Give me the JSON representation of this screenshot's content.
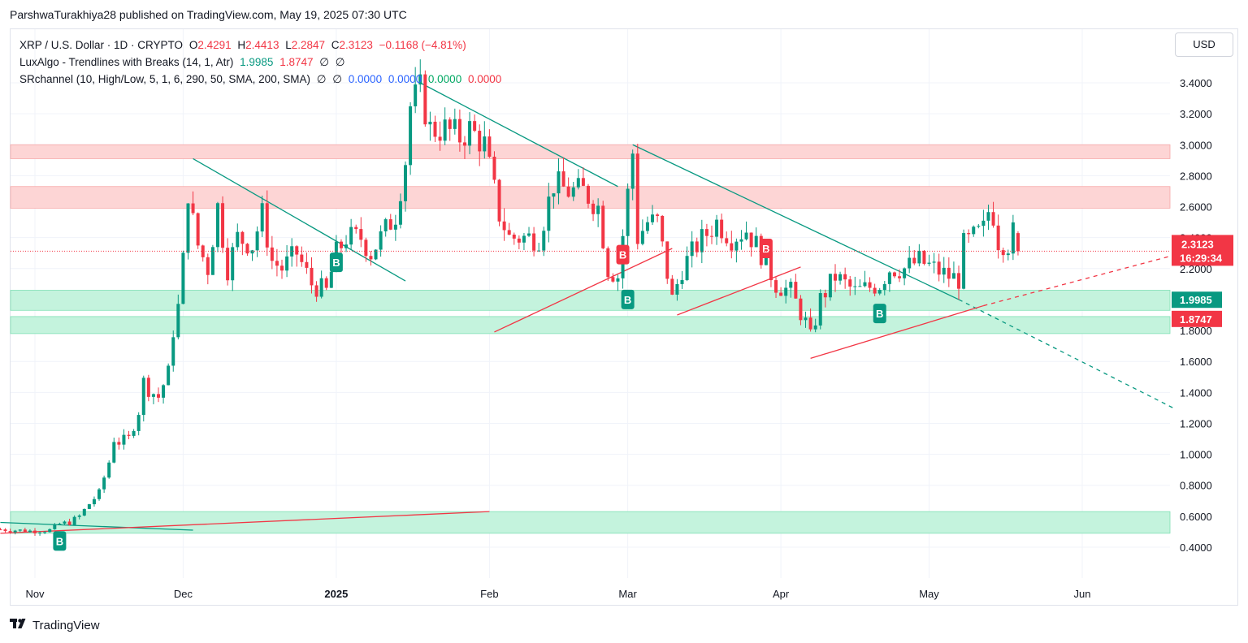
{
  "header": {
    "published": "ParshwaTurakhiya28 published on TradingView.com, May 19, 2025 07:30 UTC"
  },
  "legend": {
    "symbol": "XRP / U.S. Dollar · 1D · CRYPTO",
    "o_label": "O",
    "o": "2.4291",
    "h_label": "H",
    "h": "2.4413",
    "l_label": "L",
    "l": "2.2847",
    "c_label": "C",
    "c": "2.3123",
    "change": "−0.1168 (−4.81%)",
    "ind1_name": "LuxAlgo - Trendlines with Breaks (14, 1, Atr)",
    "ind1_v1": "1.9985",
    "ind1_v2": "1.8747",
    "ind1_na1": "∅",
    "ind1_na2": "∅",
    "ind2_name": "SRchannel (10, High/Low, 5, 1, 6, 290, 50, SMA, 200, SMA)",
    "ind2_na1": "∅",
    "ind2_na2": "∅",
    "ind2_v1": "0.0000",
    "ind2_v2": "0.0000",
    "ind2_v3": "0.0000",
    "ind2_v4": "0.0000"
  },
  "currency_button": "USD",
  "footer": {
    "brand": "TradingView",
    "logo_icon": "tradingview-logo-icon"
  },
  "colors": {
    "up": "#089981",
    "down": "#f23645",
    "text": "#131722",
    "blue": "#2962ff",
    "green": "#00a862",
    "red": "#f23645",
    "resistance_zone": "#fdd5d5",
    "support_zone": "#c4f3dd"
  },
  "chart_data": {
    "type": "candlestick",
    "symbol": "XRP / U.S. Dollar",
    "interval": "1D",
    "ylim": [
      0.3,
      3.65
    ],
    "y_ticks": [
      "3.4000",
      "3.2000",
      "3.0000",
      "2.8000",
      "2.6000",
      "2.4000",
      "2.2000",
      "2.0000",
      "1.8000",
      "1.6000",
      "1.4000",
      "1.2000",
      "1.0000",
      "0.8000",
      "0.6000",
      "0.4000"
    ],
    "x_start": "2024-10-25",
    "x_end": "2025-06-20",
    "x_ticks": [
      {
        "date": "2024-11-01",
        "label": "Nov",
        "bold": false
      },
      {
        "date": "2024-12-01",
        "label": "Dec",
        "bold": false
      },
      {
        "date": "2025-01-01",
        "label": "2025",
        "bold": true
      },
      {
        "date": "2025-02-01",
        "label": "Feb",
        "bold": false
      },
      {
        "date": "2025-03-01",
        "label": "Mar",
        "bold": false
      },
      {
        "date": "2025-04-01",
        "label": "Apr",
        "bold": false
      },
      {
        "date": "2025-05-01",
        "label": "May",
        "bold": false
      },
      {
        "date": "2025-06-01",
        "label": "Jun",
        "bold": false
      }
    ],
    "grid": true,
    "closes": [
      {
        "date": "2024-10-25",
        "close": 0.515
      },
      {
        "date": "2024-10-28",
        "close": 0.51
      },
      {
        "date": "2024-10-31",
        "close": 0.505
      },
      {
        "date": "2024-11-04",
        "close": 0.51
      },
      {
        "date": "2024-11-06",
        "close": 0.55
      },
      {
        "date": "2024-11-08",
        "close": 0.56
      },
      {
        "date": "2024-11-10",
        "close": 0.6
      },
      {
        "date": "2024-11-12",
        "close": 0.68
      },
      {
        "date": "2024-11-14",
        "close": 0.75
      },
      {
        "date": "2024-11-16",
        "close": 0.95
      },
      {
        "date": "2024-11-17",
        "close": 1.1
      },
      {
        "date": "2024-11-18",
        "close": 1.08
      },
      {
        "date": "2024-11-20",
        "close": 1.1
      },
      {
        "date": "2024-11-22",
        "close": 1.28
      },
      {
        "date": "2024-11-23",
        "close": 1.47
      },
      {
        "date": "2024-11-24",
        "close": 1.42
      },
      {
        "date": "2024-11-26",
        "close": 1.37
      },
      {
        "date": "2024-11-28",
        "close": 1.53
      },
      {
        "date": "2024-11-29",
        "close": 1.8
      },
      {
        "date": "2024-11-30",
        "close": 1.95
      },
      {
        "date": "2024-12-01",
        "close": 2.25
      },
      {
        "date": "2024-12-02",
        "close": 2.7
      },
      {
        "date": "2024-12-03",
        "close": 2.5
      },
      {
        "date": "2024-12-04",
        "close": 2.35
      },
      {
        "date": "2024-12-06",
        "close": 2.2
      },
      {
        "date": "2024-12-08",
        "close": 2.6
      },
      {
        "date": "2024-12-10",
        "close": 2.2
      },
      {
        "date": "2024-12-12",
        "close": 2.4
      },
      {
        "date": "2024-12-15",
        "close": 2.35
      },
      {
        "date": "2024-12-17",
        "close": 2.55
      },
      {
        "date": "2024-12-19",
        "close": 2.25
      },
      {
        "date": "2024-12-21",
        "close": 2.2
      },
      {
        "date": "2024-12-24",
        "close": 2.3
      },
      {
        "date": "2024-12-27",
        "close": 2.1
      },
      {
        "date": "2024-12-30",
        "close": 2.05
      },
      {
        "date": "2025-01-01",
        "close": 2.3
      },
      {
        "date": "2025-01-03",
        "close": 2.4
      },
      {
        "date": "2025-01-06",
        "close": 2.4
      },
      {
        "date": "2025-01-08",
        "close": 2.3
      },
      {
        "date": "2025-01-11",
        "close": 2.45
      },
      {
        "date": "2025-01-13",
        "close": 2.55
      },
      {
        "date": "2025-01-15",
        "close": 2.9
      },
      {
        "date": "2025-01-16",
        "close": 3.25
      },
      {
        "date": "2025-01-18",
        "close": 3.35
      },
      {
        "date": "2025-01-20",
        "close": 3.1
      },
      {
        "date": "2025-01-23",
        "close": 3.1
      },
      {
        "date": "2025-01-26",
        "close": 3.05
      },
      {
        "date": "2025-01-28",
        "close": 3.1
      },
      {
        "date": "2025-01-31",
        "close": 3.0
      },
      {
        "date": "2025-02-02",
        "close": 2.7
      },
      {
        "date": "2025-02-03",
        "close": 2.55
      },
      {
        "date": "2025-02-05",
        "close": 2.4
      },
      {
        "date": "2025-02-08",
        "close": 2.4
      },
      {
        "date": "2025-02-11",
        "close": 2.4
      },
      {
        "date": "2025-02-14",
        "close": 2.75
      },
      {
        "date": "2025-02-17",
        "close": 2.7
      },
      {
        "date": "2025-02-20",
        "close": 2.7
      },
      {
        "date": "2025-02-23",
        "close": 2.6
      },
      {
        "date": "2025-02-25",
        "close": 2.2
      },
      {
        "date": "2025-02-27",
        "close": 2.15
      },
      {
        "date": "2025-03-02",
        "close": 2.95
      },
      {
        "date": "2025-03-03",
        "close": 2.4
      },
      {
        "date": "2025-03-05",
        "close": 2.5
      },
      {
        "date": "2025-03-07",
        "close": 2.5
      },
      {
        "date": "2025-03-10",
        "close": 2.0
      },
      {
        "date": "2025-03-12",
        "close": 2.2
      },
      {
        "date": "2025-03-15",
        "close": 2.35
      },
      {
        "date": "2025-03-19",
        "close": 2.5
      },
      {
        "date": "2025-03-22",
        "close": 2.4
      },
      {
        "date": "2025-03-25",
        "close": 2.45
      },
      {
        "date": "2025-03-28",
        "close": 2.3
      },
      {
        "date": "2025-03-31",
        "close": 2.1
      },
      {
        "date": "2025-04-03",
        "close": 2.05
      },
      {
        "date": "2025-04-06",
        "close": 1.85
      },
      {
        "date": "2025-04-07",
        "close": 1.75
      },
      {
        "date": "2025-04-09",
        "close": 2.0
      },
      {
        "date": "2025-04-12",
        "close": 2.15
      },
      {
        "date": "2025-04-16",
        "close": 2.05
      },
      {
        "date": "2025-04-21",
        "close": 2.1
      },
      {
        "date": "2025-04-23",
        "close": 2.2
      },
      {
        "date": "2025-04-26",
        "close": 2.2
      },
      {
        "date": "2025-04-29",
        "close": 2.25
      },
      {
        "date": "2025-05-02",
        "close": 2.2
      },
      {
        "date": "2025-05-05",
        "close": 2.15
      },
      {
        "date": "2025-05-07",
        "close": 2.13
      },
      {
        "date": "2025-05-08",
        "close": 2.35
      },
      {
        "date": "2025-05-10",
        "close": 2.4
      },
      {
        "date": "2025-05-12",
        "close": 2.45
      },
      {
        "date": "2025-05-13",
        "close": 2.57
      },
      {
        "date": "2025-05-14",
        "close": 2.55
      },
      {
        "date": "2025-05-15",
        "close": 2.38
      },
      {
        "date": "2025-05-17",
        "close": 2.36
      },
      {
        "date": "2025-05-18",
        "close": 2.43
      },
      {
        "date": "2025-05-19",
        "close": 2.3123
      }
    ],
    "last_candle": {
      "date": "2025-05-19",
      "open": 2.4291,
      "high": 2.4413,
      "low": 2.2847,
      "close": 2.3123
    },
    "zones": [
      {
        "type": "resistance",
        "from": 2.91,
        "to": 3.0
      },
      {
        "type": "resistance",
        "from": 2.59,
        "to": 2.73
      },
      {
        "type": "support",
        "from": 1.93,
        "to": 2.06
      },
      {
        "type": "support",
        "from": 1.78,
        "to": 1.89
      },
      {
        "type": "support",
        "from": 0.49,
        "to": 0.63
      }
    ],
    "trendlines": [
      {
        "color": "green",
        "from": {
          "date": "2024-10-25",
          "value": 0.56
        },
        "to": {
          "date": "2024-12-03",
          "value": 0.51
        }
      },
      {
        "color": "red",
        "from": {
          "date": "2024-10-25",
          "value": 0.49
        },
        "to": {
          "date": "2025-02-01",
          "value": 0.63
        }
      },
      {
        "color": "green",
        "from": {
          "date": "2024-12-03",
          "value": 2.91
        },
        "to": {
          "date": "2025-01-15",
          "value": 2.12
        }
      },
      {
        "color": "green",
        "from": {
          "date": "2025-01-18",
          "value": 3.4
        },
        "to": {
          "date": "2025-02-27",
          "value": 2.73
        }
      },
      {
        "color": "red",
        "from": {
          "date": "2025-02-02",
          "value": 1.79
        },
        "to": {
          "date": "2025-03-10",
          "value": 2.33
        }
      },
      {
        "color": "green",
        "from": {
          "date": "2025-03-02",
          "value": 3.0
        },
        "to": {
          "date": "2025-05-07",
          "value": 2.0
        }
      },
      {
        "color": "green",
        "dashed": true,
        "from": {
          "date": "2025-05-07",
          "value": 2.0
        },
        "to": {
          "date": "2025-06-20",
          "value": 1.29
        }
      },
      {
        "color": "red",
        "from": {
          "date": "2025-03-11",
          "value": 1.9
        },
        "to": {
          "date": "2025-04-05",
          "value": 2.21
        }
      },
      {
        "color": "red",
        "from": {
          "date": "2025-04-07",
          "value": 1.62
        },
        "to": {
          "date": "2025-05-12",
          "value": 1.96
        }
      },
      {
        "color": "red",
        "dashed": true,
        "from": {
          "date": "2025-05-12",
          "value": 1.96
        },
        "to": {
          "date": "2025-06-20",
          "value": 2.29
        }
      }
    ],
    "markers": [
      {
        "date": "2024-11-06",
        "value": 0.44,
        "label": "B",
        "color": "green"
      },
      {
        "date": "2025-01-01",
        "value": 2.24,
        "label": "B",
        "color": "green"
      },
      {
        "date": "2025-02-28",
        "value": 2.29,
        "label": "B",
        "color": "red"
      },
      {
        "date": "2025-02-29",
        "value": 2.0,
        "label": "B",
        "color": "green"
      },
      {
        "date": "2025-03-29",
        "value": 2.33,
        "label": "B",
        "color": "red"
      },
      {
        "date": "2025-04-21",
        "value": 1.91,
        "label": "B",
        "color": "green"
      }
    ],
    "price_labels": [
      {
        "value": 2.3123,
        "text": "2.3123",
        "countdown": "16:29:34",
        "color": "red"
      },
      {
        "value": 1.9985,
        "text": "1.9985",
        "color": "green"
      },
      {
        "value": 1.8747,
        "text": "1.8747",
        "color": "red"
      }
    ]
  }
}
